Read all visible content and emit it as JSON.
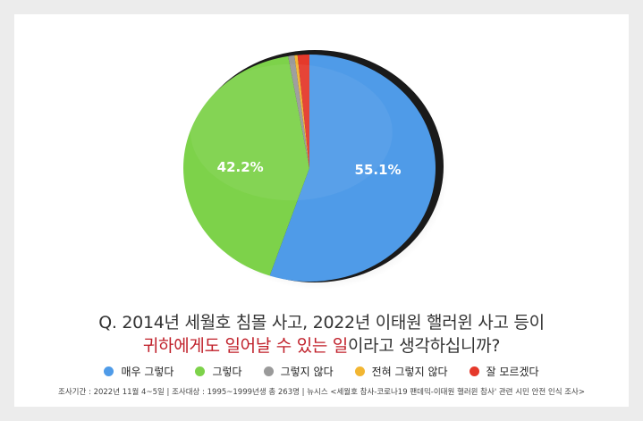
{
  "question": {
    "line1": "Q. 2014년 세월호 침몰 사고, 2022년 이태원 핼러윈 사고 등이",
    "line2_highlight": "귀하에게도 일어날 수 있는 일",
    "line2_rest": "이라고 생각하십니까?"
  },
  "chart_data": {
    "type": "pie",
    "slices": [
      {
        "label": "매우 그렇다",
        "value": 55.1,
        "color": "#4f9be8",
        "data_label": "55.1%"
      },
      {
        "label": "그렇다",
        "value": 42.2,
        "color": "#7dd24a",
        "data_label": "42.2%"
      },
      {
        "label": "그렇지 않다",
        "value": 0.8,
        "color": "#9a9a9a",
        "data_label": ""
      },
      {
        "label": "전혀 그렇지 않다",
        "value": 0.4,
        "color": "#f2b632",
        "data_label": ""
      },
      {
        "label": "잘 모르겠다",
        "value": 1.5,
        "color": "#e5392b",
        "data_label": ""
      }
    ],
    "legend_position": "bottom"
  },
  "footnote": "조사기간 : 2022년 11월 4~5일  |  조사대상 : 1995~1999년생 총 263명  |  뉴시스 <세월호 참사-코로나19 팬데믹-이태원 핼러윈 참사' 관련 시민 안전 인식 조사>"
}
